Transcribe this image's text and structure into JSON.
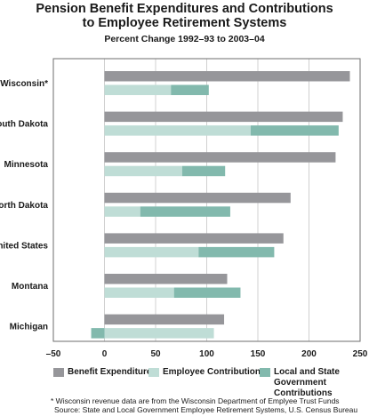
{
  "chart_data": {
    "type": "bar",
    "title": "Pension Benefit Expenditures and Contributions to Employee Retirement Systems",
    "title_line1": "Pension Benefit Expenditures and Contributions",
    "title_line2": "to Employee Retirement Systems",
    "subtitle": "Percent Change 1992–93 to 2003–04",
    "xlabel": "",
    "ylabel": "",
    "orientation": "horizontal",
    "xlim": [
      -50,
      250
    ],
    "xticks": [
      "–50",
      "0",
      "50",
      "100",
      "150",
      "200",
      "250"
    ],
    "categories": [
      "Wisconsin*",
      "South Dakota",
      "Minnesota",
      "North Dakota",
      "United States",
      "Montana",
      "Michigan"
    ],
    "series": [
      {
        "name": "Benefit Expenditures",
        "color": "#96969a",
        "values": [
          240,
          233,
          226,
          182,
          175,
          120,
          117
        ]
      },
      {
        "name": "Employee Contributions",
        "color": "#bfddd6",
        "values": [
          65,
          143,
          76,
          35,
          92,
          68,
          107
        ]
      },
      {
        "name": "Local and State Government Contributions",
        "color": "#82b9ad",
        "values": [
          37,
          86,
          42,
          88,
          74,
          65,
          -13
        ]
      }
    ],
    "stacked_series": [
      "Employee Contributions",
      "Local and State Government Contributions"
    ],
    "legend_position": "bottom",
    "grid": "vertical",
    "notes": [
      "* Wisconsin revenue data are from the Wisconsin Department of Emplyee Trust Funds",
      "Source: State and Local Government Employee Retirement Systems, U.S. Census Bureau"
    ]
  },
  "legend": {
    "benefit": "Benefit Expenditures",
    "employee": "Employee Contributions",
    "gov_line1": "Local and State",
    "gov_line2": "Government Contributions"
  }
}
